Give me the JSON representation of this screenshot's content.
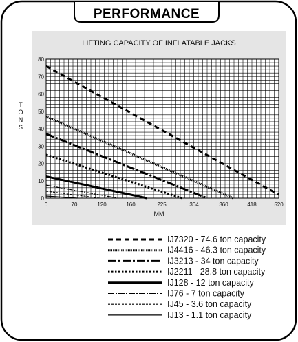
{
  "header": {
    "title": "PERFORMANCE"
  },
  "chart_data": {
    "type": "line",
    "title": "LIFTING CAPACITY OF INFLATABLE JACKS",
    "xlabel": "MM",
    "ylabel": "TONS",
    "xticks": [
      0,
      70,
      120,
      160,
      225,
      304,
      360,
      418,
      520
    ],
    "yticks": [
      0,
      10,
      20,
      30,
      40,
      50,
      60,
      70,
      80
    ],
    "xlim": [
      0,
      520
    ],
    "ylim": [
      0,
      80
    ],
    "grid": true,
    "legend_position": "bottom",
    "series": [
      {
        "name": "IJ7320 - 74.6 ton capacity",
        "style": "dashed-heavy",
        "x": [
          0,
          520
        ],
        "y": [
          76,
          2
        ]
      },
      {
        "name": "IJ4416 - 46.3 ton capacity",
        "style": "fine-dotted-heavy",
        "x": [
          0,
          418
        ],
        "y": [
          47,
          0
        ]
      },
      {
        "name": "IJ3213 - 34 ton capacity",
        "style": "dash-dot-heavy",
        "x": [
          0,
          360
        ],
        "y": [
          37,
          0
        ]
      },
      {
        "name": "IJ2211 - 28.8 ton capacity",
        "style": "dotted-heavy",
        "x": [
          0,
          304
        ],
        "y": [
          25,
          0
        ]
      },
      {
        "name": "IJ128 - 12 ton capacity",
        "style": "solid-heavy",
        "x": [
          0,
          225
        ],
        "y": [
          12.5,
          0
        ]
      },
      {
        "name": "IJ76 - 7 ton capacity",
        "style": "dash-dot-thin",
        "x": [
          0,
          160
        ],
        "y": [
          7.5,
          0
        ]
      },
      {
        "name": "IJ45 - 3.6 ton capacity",
        "style": "dashed-thin",
        "x": [
          0,
          120
        ],
        "y": [
          4,
          0
        ]
      },
      {
        "name": "IJ13 - 1.1 ton capacity",
        "style": "solid-thin",
        "x": [
          0,
          70
        ],
        "y": [
          1.2,
          0
        ]
      }
    ]
  }
}
